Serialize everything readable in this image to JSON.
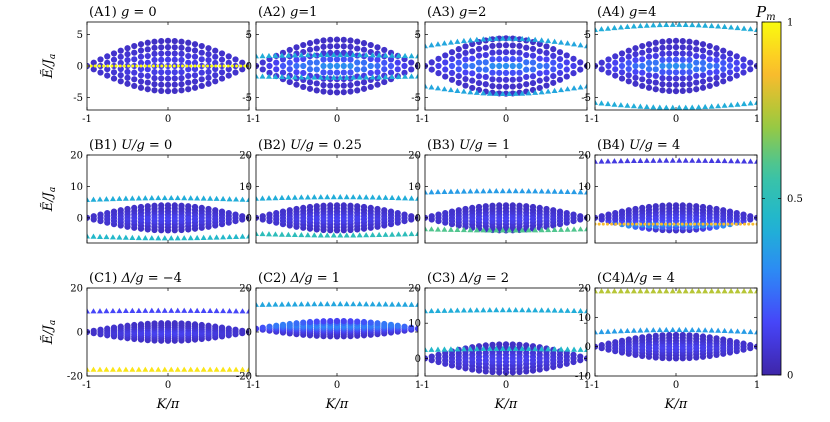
{
  "chart_data": {
    "type": "scatter",
    "description_kind": "grid-of-band-spectra",
    "colorbar": {
      "label": "P_m",
      "label_main": "P",
      "label_sub": "m",
      "ticks": [
        "0",
        "0.5",
        "1"
      ],
      "range": [
        0,
        1
      ],
      "colormap": [
        "#3e26a8",
        "#4743f8",
        "#2e87f7",
        "#1eb6d1",
        "#3cc4a3",
        "#9fc93b",
        "#fdbb2c",
        "#f9fb0e"
      ]
    },
    "xlabel": "K/π",
    "xlabel_main": "K/π",
    "ylabel": "Ẽ/J_a",
    "ylabel_main": "Ẽ/J",
    "ylabel_sub": "a",
    "rows": [
      {
        "id": "A",
        "ylim": [
          -7,
          7
        ],
        "yticks": [
          "-5",
          "0",
          "5"
        ],
        "xticks": [
          "-1",
          "0",
          "1"
        ],
        "panels": [
          {
            "label": "(A1)",
            "title": "(A1) g = 0",
            "title_main": "(A1) ",
            "title_var": "g",
            "title_rest": " = 0",
            "band_center": 0,
            "band_halfwidth": 4,
            "flat": [
              {
                "y": 0,
                "pm": 1.0,
                "marker": "line"
              }
            ]
          },
          {
            "label": "(A2)",
            "title": "(A2) g=1",
            "title_main": "(A2) ",
            "title_var": "g",
            "title_rest": "=1",
            "band_center": 0,
            "band_halfwidth": 4.2,
            "flat": [
              {
                "y": 1.6,
                "pm": 0.4,
                "marker": "triangle",
                "curv": 0.2
              },
              {
                "y": -1.6,
                "pm": 0.4,
                "marker": "triangle",
                "curv": -0.2
              }
            ]
          },
          {
            "label": "(A3)",
            "title": "(A3) g=2",
            "title_main": "(A3) ",
            "title_var": "g",
            "title_rest": "=2",
            "band_center": 0,
            "band_halfwidth": 4.4,
            "flat": [
              {
                "y": 3.2,
                "pm": 0.38,
                "marker": "triangle",
                "curv": 1.2
              },
              {
                "y": -3.2,
                "pm": 0.38,
                "marker": "triangle",
                "curv": -1.2
              }
            ]
          },
          {
            "label": "(A4)",
            "title": "(A4) g=4",
            "title_main": "(A4) ",
            "title_var": "g",
            "title_rest": "=4",
            "band_center": 0,
            "band_halfwidth": 4,
            "flat": [
              {
                "y": 5.8,
                "pm": 0.4,
                "marker": "triangle",
                "curv": 0.8
              },
              {
                "y": -5.8,
                "pm": 0.4,
                "marker": "triangle",
                "curv": -0.8
              }
            ]
          }
        ]
      },
      {
        "id": "B",
        "ylim": [
          -8,
          20
        ],
        "yticks": [
          "0",
          "10",
          "20"
        ],
        "xticks": [
          "",
          "",
          ""
        ],
        "panels": [
          {
            "label": "(B1)",
            "title": "(B1) U/g = 0",
            "title_main": "(B1) ",
            "title_var": "U/g",
            "title_rest": " = 0",
            "band_center": 0,
            "band_halfwidth": 4,
            "flat": [
              {
                "y": 5.8,
                "pm": 0.4,
                "marker": "triangle",
                "curv": 0.6
              },
              {
                "y": -5.8,
                "pm": 0.45,
                "marker": "triangle",
                "curv": -0.6
              }
            ]
          },
          {
            "label": "(B2)",
            "title": "(B2) U/g = 0.25",
            "title_main": "(B2) ",
            "title_var": "U/g",
            "title_rest": " = 0.25",
            "band_center": 0,
            "band_halfwidth": 4,
            "flat": [
              {
                "y": 6.2,
                "pm": 0.4,
                "marker": "triangle",
                "curv": 0.5
              },
              {
                "y": -5.0,
                "pm": 0.5,
                "marker": "triangle",
                "curv": -0.5
              }
            ]
          },
          {
            "label": "(B3)",
            "title": "(B3) U/g = 1",
            "title_main": "(B3) ",
            "title_var": "U/g",
            "title_rest": " = 1",
            "band_center": 0,
            "band_halfwidth": 4,
            "flat": [
              {
                "y": 8.2,
                "pm": 0.35,
                "marker": "triangle",
                "curv": 0.4
              },
              {
                "y": -3.5,
                "pm": 0.6,
                "marker": "triangle",
                "curv": -0.4
              }
            ]
          },
          {
            "label": "(B4)",
            "title": "(B4) U/g = 4",
            "title_main": "(B4) ",
            "title_var": "U/g",
            "title_rest": " = 4",
            "band_center": 0,
            "band_halfwidth": 4,
            "flat": [
              {
                "y": 18.0,
                "pm": 0.1,
                "marker": "triangle",
                "curv": 0.3
              },
              {
                "y": -2.0,
                "pm": 0.85,
                "marker": "line"
              }
            ]
          }
        ]
      },
      {
        "id": "C",
        "ylim": [
          -20,
          20
        ],
        "yticks": [
          "-20",
          "0",
          "20"
        ],
        "xticks": [
          "-1",
          "0",
          "1"
        ],
        "panels": [
          {
            "label": "(C1)",
            "title": "(C1) Δ/g = −4",
            "title_main": "(C1) ",
            "title_var": "Δ/g",
            "title_rest": " = −4",
            "ylim": [
              -20,
              20
            ],
            "yticks": [
              "-20",
              "0",
              "20"
            ],
            "band_center": 0,
            "band_halfwidth": 4,
            "flat": [
              {
                "y": 9.5,
                "pm": 0.15,
                "marker": "triangle",
                "curv": 0.3
              },
              {
                "y": -17.0,
                "pm": 0.95,
                "marker": "triangle",
                "curv": 0
              }
            ]
          },
          {
            "label": "(C2)",
            "title": "(C2) Δ/g = 1",
            "title_main": "(C2) ",
            "title_var": "Δ/g",
            "title_rest": " = 1",
            "ylim": [
              -20,
              20
            ],
            "yticks": [
              "-20",
              "0",
              "20"
            ],
            "band_center": 1.5,
            "band_halfwidth": 3.5,
            "flat": [
              {
                "y": 12.5,
                "pm": 0.38,
                "marker": "triangle",
                "curv": 0.3
              }
            ]
          },
          {
            "label": "(C3)",
            "title": "(C3) Δ/g = 2",
            "title_main": "(C3) ",
            "title_var": "Δ/g",
            "title_rest": " = 2",
            "ylim": [
              -5,
              20
            ],
            "yticks": [
              "0",
              "10",
              "20"
            ],
            "band_center": 0,
            "band_halfwidth": 4,
            "flat": [
              {
                "y": 13.5,
                "pm": 0.4,
                "marker": "triangle",
                "curv": 0.3
              },
              {
                "y": 2.5,
                "pm": 0.45,
                "marker": "triangle",
                "curv": 0.3
              }
            ]
          },
          {
            "label": "(C4)",
            "title": "(C4) Δ/g = 4",
            "title_main": "(C4)",
            "title_var": "Δ/g",
            "title_rest": " = 4",
            "ylim": [
              -10,
              20
            ],
            "yticks": [
              "-10",
              "0",
              "10",
              "20"
            ],
            "band_center": 0,
            "band_halfwidth": 4,
            "flat": [
              {
                "y": 19.0,
                "pm": 0.75,
                "marker": "triangle",
                "curv": 0
              },
              {
                "y": 5.0,
                "pm": 0.35,
                "marker": "triangle",
                "curv": 0.8
              }
            ]
          }
        ]
      }
    ]
  }
}
